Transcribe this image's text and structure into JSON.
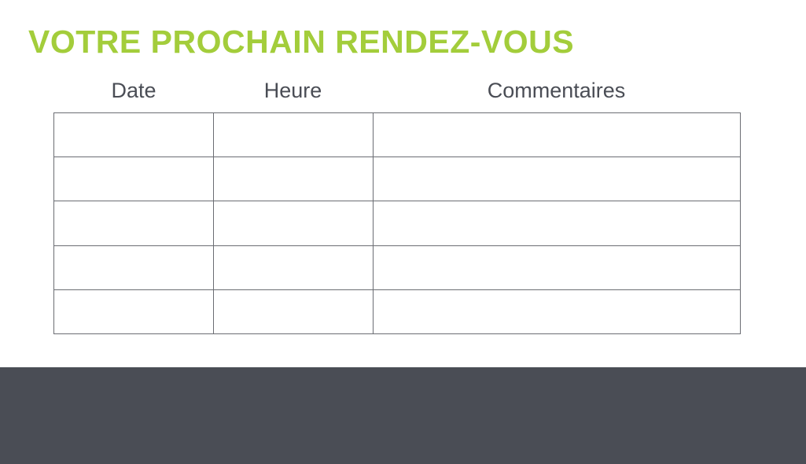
{
  "title": "VOTRE PROCHAIN RENDEZ-VOUS",
  "table": {
    "columns": [
      "Date",
      "Heure",
      "Commentaires"
    ],
    "rows": [
      [
        "",
        "",
        ""
      ],
      [
        "",
        "",
        ""
      ],
      [
        "",
        "",
        ""
      ],
      [
        "",
        "",
        ""
      ],
      [
        "",
        "",
        ""
      ]
    ]
  },
  "colors": {
    "accent": "#a3cd3b",
    "text": "#4a4d55",
    "footer": "#4a4d55"
  }
}
